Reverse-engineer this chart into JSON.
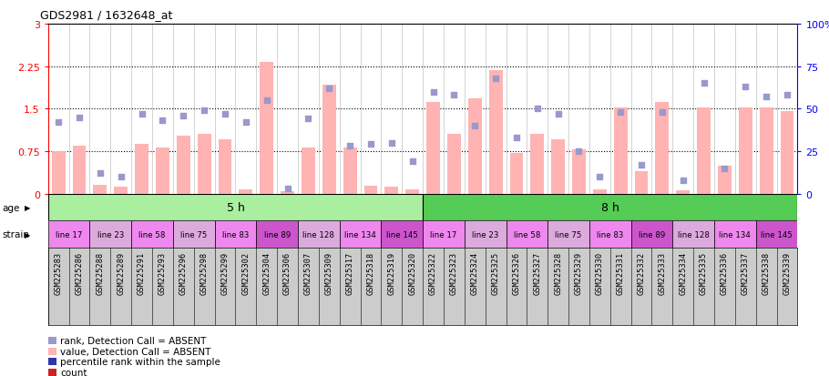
{
  "title": "GDS2981 / 1632648_at",
  "samples": [
    "GSM225283",
    "GSM225286",
    "GSM225288",
    "GSM225289",
    "GSM225291",
    "GSM225293",
    "GSM225296",
    "GSM225298",
    "GSM225299",
    "GSM225302",
    "GSM225304",
    "GSM225306",
    "GSM225307",
    "GSM225309",
    "GSM225317",
    "GSM225318",
    "GSM225319",
    "GSM225320",
    "GSM225322",
    "GSM225323",
    "GSM225324",
    "GSM225325",
    "GSM225326",
    "GSM225327",
    "GSM225328",
    "GSM225329",
    "GSM225330",
    "GSM225331",
    "GSM225332",
    "GSM225333",
    "GSM225334",
    "GSM225335",
    "GSM225336",
    "GSM225337",
    "GSM225338",
    "GSM225339"
  ],
  "bar_values": [
    0.75,
    0.85,
    0.15,
    0.12,
    0.88,
    0.82,
    1.02,
    1.05,
    0.95,
    0.07,
    2.32,
    0.04,
    0.82,
    1.92,
    0.82,
    0.14,
    0.12,
    0.07,
    1.62,
    1.05,
    1.68,
    2.18,
    0.72,
    1.05,
    0.95,
    0.78,
    0.08,
    1.52,
    0.4,
    1.62,
    0.06,
    1.52,
    0.5,
    1.52,
    1.52,
    1.45
  ],
  "rank_values": [
    42,
    45,
    12,
    10,
    47,
    43,
    46,
    49,
    47,
    42,
    55,
    3,
    44,
    62,
    28,
    29,
    30,
    19,
    60,
    58,
    40,
    68,
    33,
    50,
    47,
    25,
    10,
    48,
    17,
    48,
    8,
    65,
    15,
    63,
    57,
    58
  ],
  "bar_color": "#ffb3b3",
  "rank_color": "#9999cc",
  "age_groups": [
    {
      "label": "5 h",
      "start": 0,
      "end": 18,
      "color": "#aaeea0"
    },
    {
      "label": "8 h",
      "start": 18,
      "end": 36,
      "color": "#55cc55"
    }
  ],
  "strain_groups": [
    {
      "label": "line 17",
      "start": 0,
      "end": 2,
      "color": "#ee88ee"
    },
    {
      "label": "line 23",
      "start": 2,
      "end": 4,
      "color": "#ddaadd"
    },
    {
      "label": "line 58",
      "start": 4,
      "end": 6,
      "color": "#ee88ee"
    },
    {
      "label": "line 75",
      "start": 6,
      "end": 8,
      "color": "#ddaadd"
    },
    {
      "label": "line 83",
      "start": 8,
      "end": 10,
      "color": "#ee88ee"
    },
    {
      "label": "line 89",
      "start": 10,
      "end": 12,
      "color": "#cc55cc"
    },
    {
      "label": "line 128",
      "start": 12,
      "end": 14,
      "color": "#ddaadd"
    },
    {
      "label": "line 134",
      "start": 14,
      "end": 16,
      "color": "#ee88ee"
    },
    {
      "label": "line 145",
      "start": 16,
      "end": 18,
      "color": "#cc55cc"
    },
    {
      "label": "line 17",
      "start": 18,
      "end": 20,
      "color": "#ee88ee"
    },
    {
      "label": "line 23",
      "start": 20,
      "end": 22,
      "color": "#ddaadd"
    },
    {
      "label": "line 58",
      "start": 22,
      "end": 24,
      "color": "#ee88ee"
    },
    {
      "label": "line 75",
      "start": 24,
      "end": 26,
      "color": "#ddaadd"
    },
    {
      "label": "line 83",
      "start": 26,
      "end": 28,
      "color": "#ee88ee"
    },
    {
      "label": "line 89",
      "start": 28,
      "end": 30,
      "color": "#cc55cc"
    },
    {
      "label": "line 128",
      "start": 30,
      "end": 32,
      "color": "#ddaadd"
    },
    {
      "label": "line 134",
      "start": 32,
      "end": 34,
      "color": "#ee88ee"
    },
    {
      "label": "line 145",
      "start": 34,
      "end": 36,
      "color": "#cc55cc"
    }
  ],
  "ylim_left": [
    0,
    3
  ],
  "ylim_right": [
    0,
    100
  ],
  "yticks_left": [
    0,
    0.75,
    1.5,
    2.25,
    3
  ],
  "yticks_right": [
    0,
    25,
    50,
    75,
    100
  ],
  "hlines": [
    0.75,
    1.5,
    2.25
  ],
  "bar_width": 0.65,
  "xticklabel_bg": "#cccccc",
  "legend": [
    {
      "label": "count",
      "color": "#cc2222"
    },
    {
      "label": "percentile rank within the sample",
      "color": "#3333aa"
    },
    {
      "label": "value, Detection Call = ABSENT",
      "color": "#ffb3b3"
    },
    {
      "label": "rank, Detection Call = ABSENT",
      "color": "#9999cc"
    }
  ]
}
